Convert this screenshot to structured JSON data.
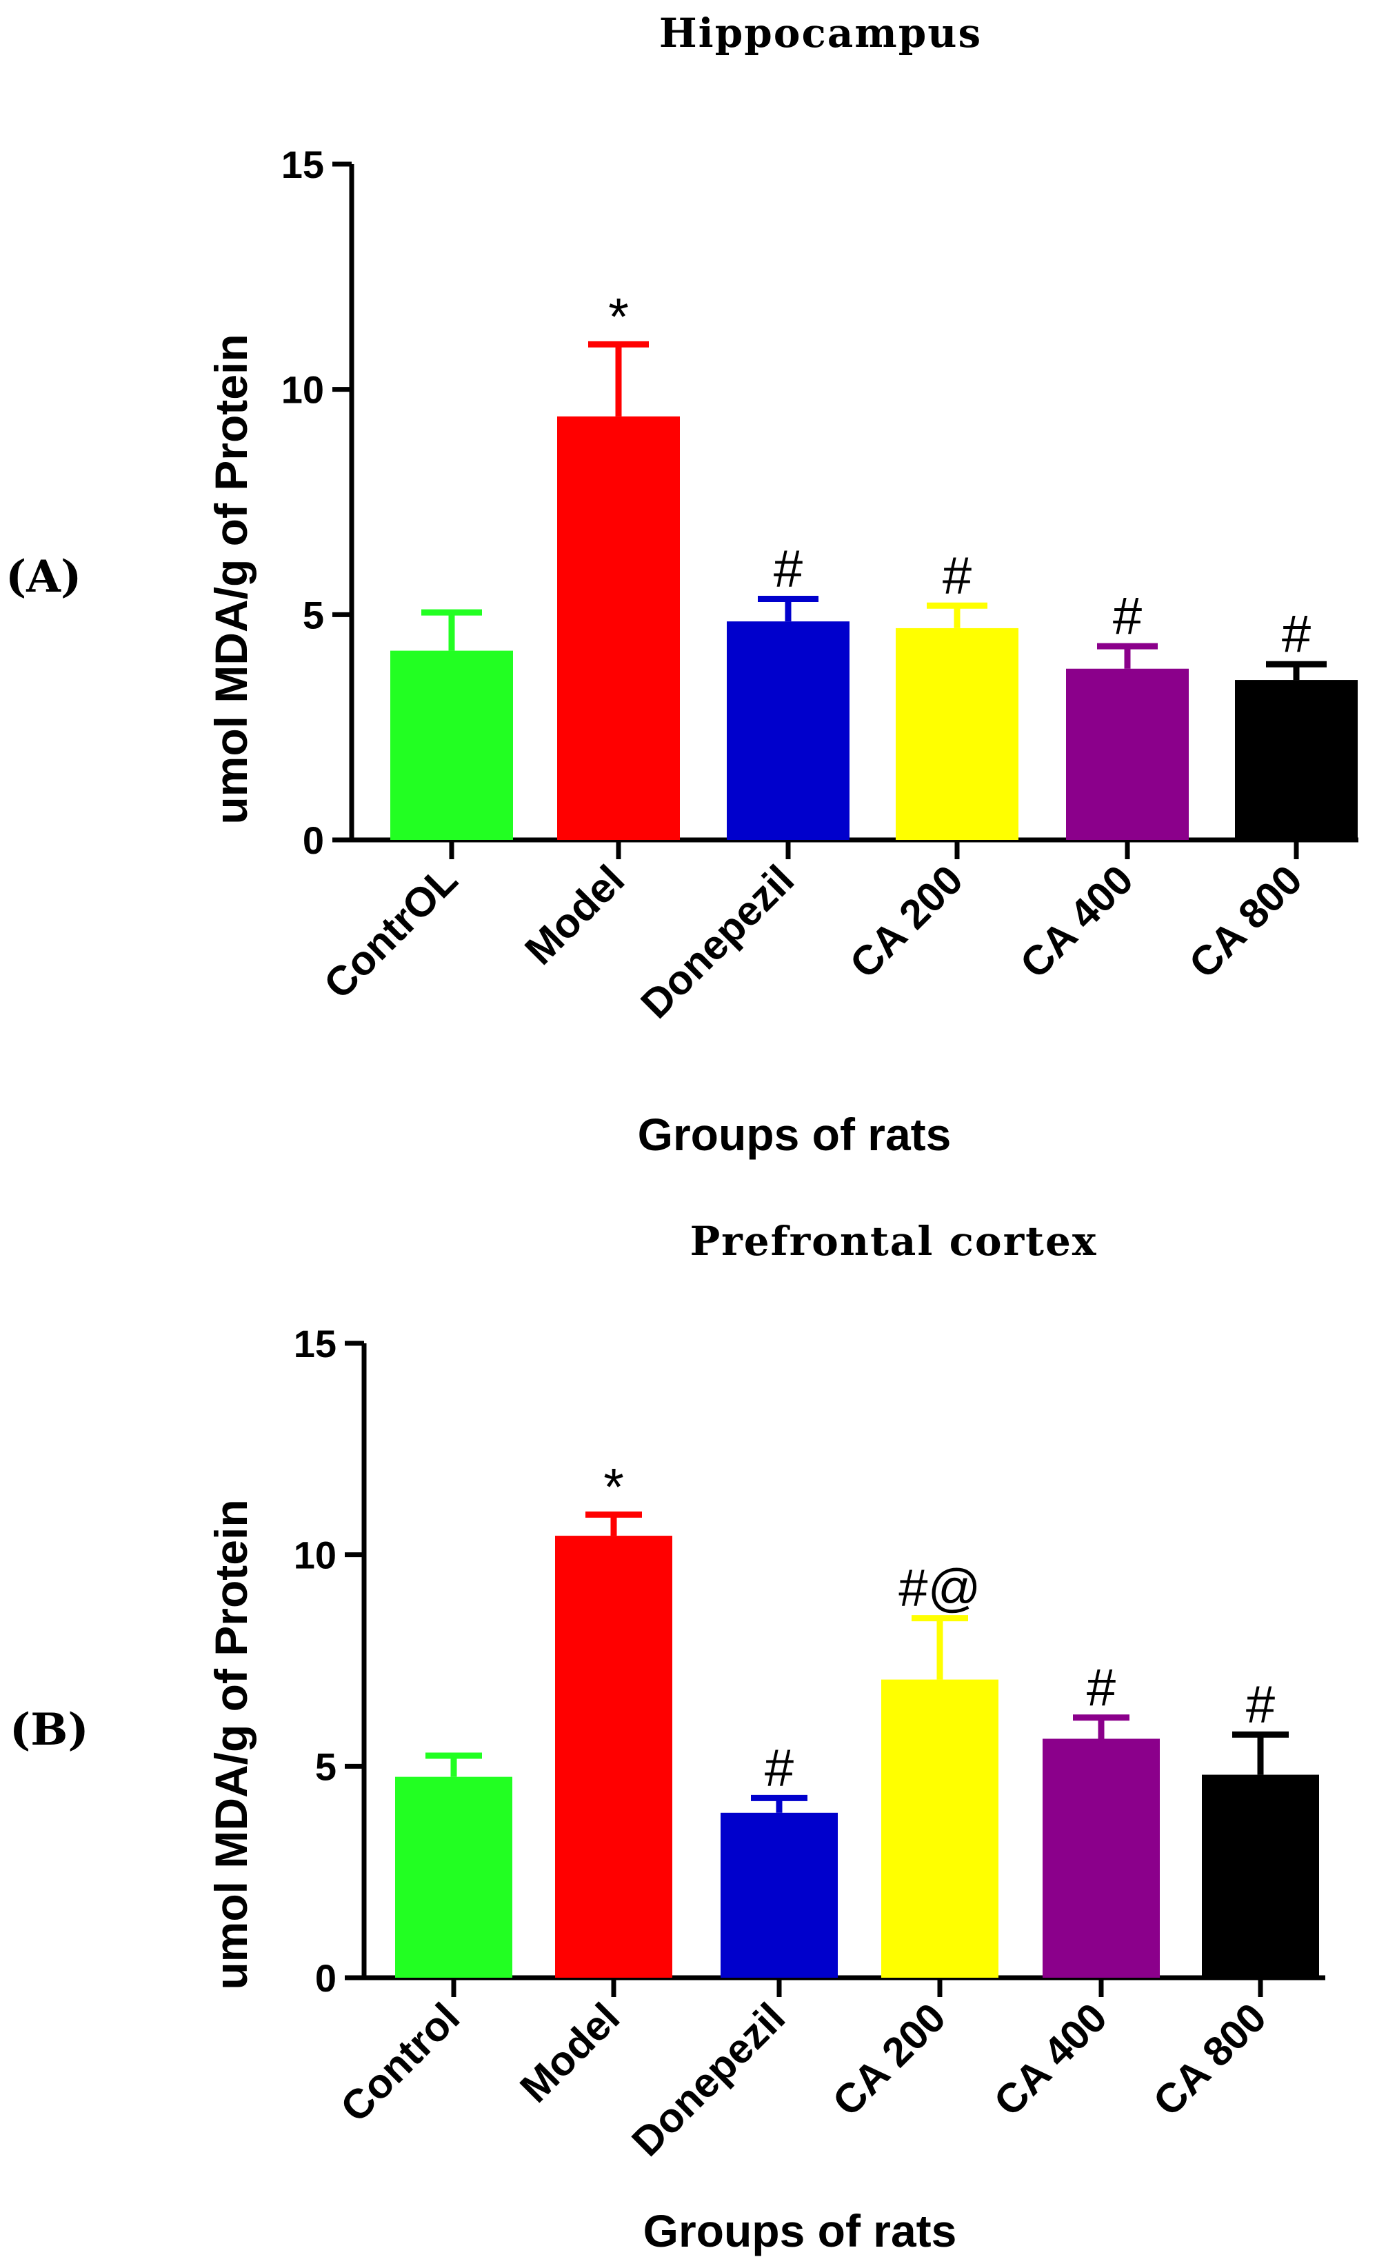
{
  "chart_data": [
    {
      "type": "bar",
      "panel_label": "(A)",
      "title": "Hippocampus",
      "xlabel": "Groups of rats",
      "ylabel": "umol MDA/g of Protein",
      "ylim": [
        0,
        15
      ],
      "yticks": [
        "0",
        "5",
        "10",
        "15"
      ],
      "categories": [
        "ContrOL",
        "Model",
        "Donepezil",
        "CA 200",
        "CA 400",
        "CA 800"
      ],
      "values": [
        4.2,
        9.4,
        4.85,
        4.7,
        3.8,
        3.55
      ],
      "errors": [
        0.85,
        1.6,
        0.5,
        0.5,
        0.5,
        0.35
      ],
      "annotations": [
        "",
        "*",
        "#",
        "#",
        "#",
        "#"
      ],
      "colors": [
        "#22ff22",
        "#ff0000",
        "#0000cc",
        "#ffff00",
        "#8b008b",
        "#000000"
      ]
    },
    {
      "type": "bar",
      "panel_label": "(B)",
      "title": "Prefrontal cortex",
      "xlabel": "Groups of rats",
      "ylabel": "umol MDA/g of Protein",
      "ylim": [
        0,
        15
      ],
      "yticks": [
        "0",
        "5",
        "10",
        "15"
      ],
      "categories": [
        "Control",
        "Model",
        "Donepezil",
        "CA 200",
        "CA 400",
        "CA 800"
      ],
      "values": [
        4.75,
        10.45,
        3.9,
        7.05,
        5.65,
        4.8
      ],
      "errors": [
        0.5,
        0.5,
        0.35,
        1.45,
        0.5,
        0.95
      ],
      "annotations": [
        "",
        "*",
        "#",
        "#@",
        "#",
        "#"
      ],
      "colors": [
        "#22ff22",
        "#ff0000",
        "#0000cc",
        "#ffff00",
        "#8b008b",
        "#000000"
      ]
    }
  ]
}
